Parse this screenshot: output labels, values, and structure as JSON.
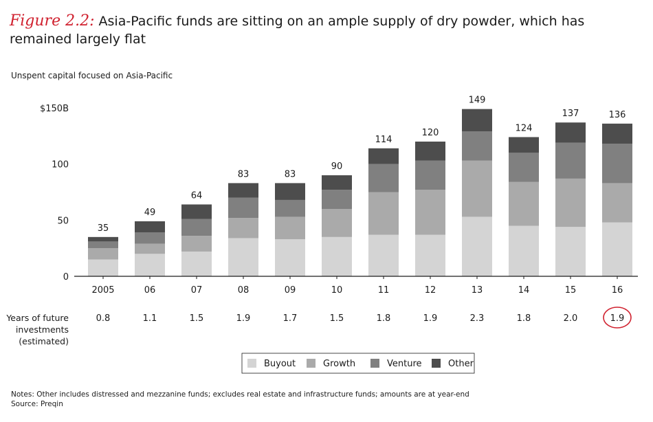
{
  "title": {
    "figure_label": "Figure 2.2:",
    "text": "Asia-Pacific funds are sitting on an ample supply of dry powder, which has remained largely flat"
  },
  "subtitle": "Unspent capital focused on Asia-Pacific",
  "colors": {
    "Buyout": "#d4d4d4",
    "Growth": "#aaaaaa",
    "Venture": "#808080",
    "Other": "#4d4d4d",
    "highlight": "#d0202e"
  },
  "chart_data": {
    "type": "bar",
    "stacked": true,
    "categories": [
      "2005",
      "06",
      "07",
      "08",
      "09",
      "10",
      "11",
      "12",
      "13",
      "14",
      "15",
      "16"
    ],
    "totals": [
      35,
      49,
      64,
      83,
      83,
      90,
      114,
      120,
      149,
      124,
      137,
      136
    ],
    "series": [
      {
        "name": "Buyout",
        "values": [
          15,
          20,
          22,
          34,
          33,
          35,
          37,
          37,
          53,
          45,
          44,
          48
        ]
      },
      {
        "name": "Growth",
        "values": [
          10,
          9,
          14,
          18,
          20,
          25,
          38,
          40,
          50,
          39,
          43,
          35
        ]
      },
      {
        "name": "Venture",
        "values": [
          6,
          10,
          15,
          18,
          15,
          17,
          25,
          26,
          26,
          26,
          32,
          35
        ]
      },
      {
        "name": "Other",
        "values": [
          4,
          10,
          13,
          13,
          15,
          13,
          14,
          17,
          20,
          14,
          18,
          18
        ]
      }
    ],
    "ylim": [
      0,
      150
    ],
    "yticks": [
      0,
      50,
      100,
      150
    ],
    "ytick_labels": [
      "0",
      "50",
      "100",
      "$150B"
    ],
    "ylabel": "",
    "xlabel": "",
    "grid": false,
    "legend_position": "bottom-center",
    "legend": [
      "Buyout",
      "Growth",
      "Venture",
      "Other"
    ],
    "secondary_row": {
      "label_lines": [
        "Years of future",
        "investments",
        "(estimated)"
      ],
      "values": [
        "0.8",
        "1.1",
        "1.5",
        "1.9",
        "1.7",
        "1.5",
        "1.8",
        "1.9",
        "2.3",
        "1.8",
        "2.0",
        "1.9"
      ],
      "highlighted_index": 11
    }
  },
  "notes": [
    "Notes: Other includes distressed and mezzanine funds; excludes real estate and infrastructure funds; amounts are at year-end",
    "Source: Preqin"
  ]
}
